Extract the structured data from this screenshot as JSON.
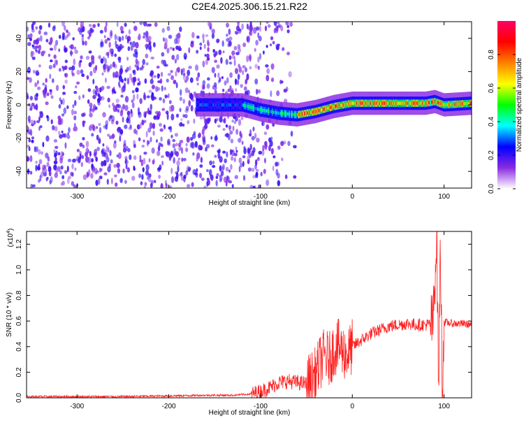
{
  "title": "C2E4.2025.306.15.21.R22",
  "chart_data": [
    {
      "type": "heatmap",
      "xlabel": "Height of straight line (km)",
      "ylabel": "Frequency (Hz)",
      "xlim": [
        -355,
        130
      ],
      "ylim": [
        -50,
        50
      ],
      "x_ticks": [
        -300,
        -200,
        -100,
        0,
        100
      ],
      "y_ticks": [
        -40,
        -20,
        0,
        20,
        40
      ],
      "colorbar": {
        "label": "Normalized spectral amplitude",
        "range": [
          0,
          1
        ],
        "ticks": [
          "0.0",
          "0.2",
          "0.4",
          "0.6",
          "0.8"
        ],
        "colors": [
          "#ffffff",
          "#8a2be2",
          "#0000ff",
          "#00ffff",
          "#00ff00",
          "#ffff00",
          "#ff8000",
          "#ff0000",
          "#ff0066"
        ]
      },
      "ridge": {
        "x": [
          -170,
          -160,
          -140,
          -120,
          -100,
          -80,
          -60,
          -40,
          -20,
          0,
          40,
          80,
          90,
          100,
          130
        ],
        "frequency": [
          0,
          0,
          0,
          0,
          -3,
          -5,
          -6,
          -4,
          -1,
          1,
          1,
          1,
          2,
          0,
          1
        ]
      },
      "noise_region_x": [
        -355,
        -60
      ]
    },
    {
      "type": "line",
      "xlabel": "Height of straight line (km)",
      "ylabel": "SNR (10 * v/v)",
      "multiplier_label": "(x10",
      "multiplier_exp": "4",
      "multiplier_close": ")",
      "xlim": [
        -355,
        130
      ],
      "ylim": [
        0,
        1.3
      ],
      "x_ticks": [
        -300,
        -200,
        -100,
        0,
        100
      ],
      "y_ticks": [
        0.0,
        0.2,
        0.4,
        0.6,
        0.8,
        1.0,
        1.2
      ],
      "y_tick_labels": [
        "0.0",
        "0.2",
        "0.4",
        "0.6",
        "0.8",
        "1.0",
        "1.2"
      ],
      "color": "#ff2020",
      "series": [
        {
          "x": [
            -355,
            -300,
            -250,
            -200,
            -160,
            -130,
            -110,
            -100,
            -90,
            -80,
            -70,
            -60,
            -50,
            -45,
            -40,
            -35,
            -30,
            -25,
            -20,
            -15,
            -10,
            -5,
            0,
            10,
            20,
            30,
            40,
            50,
            60,
            70,
            80,
            88,
            92,
            94,
            96,
            98,
            100,
            110,
            120,
            130
          ],
          "values": [
            0.01,
            0.01,
            0.01,
            0.015,
            0.02,
            0.02,
            0.03,
            0.05,
            0.08,
            0.12,
            0.13,
            0.12,
            0.11,
            0.15,
            0.18,
            0.28,
            0.33,
            0.3,
            0.38,
            0.4,
            0.36,
            0.34,
            0.4,
            0.45,
            0.5,
            0.53,
            0.56,
            0.57,
            0.58,
            0.57,
            0.57,
            0.58,
            1.3,
            0.06,
            1.25,
            0.05,
            0.59,
            0.58,
            0.58,
            0.57
          ]
        }
      ]
    }
  ]
}
